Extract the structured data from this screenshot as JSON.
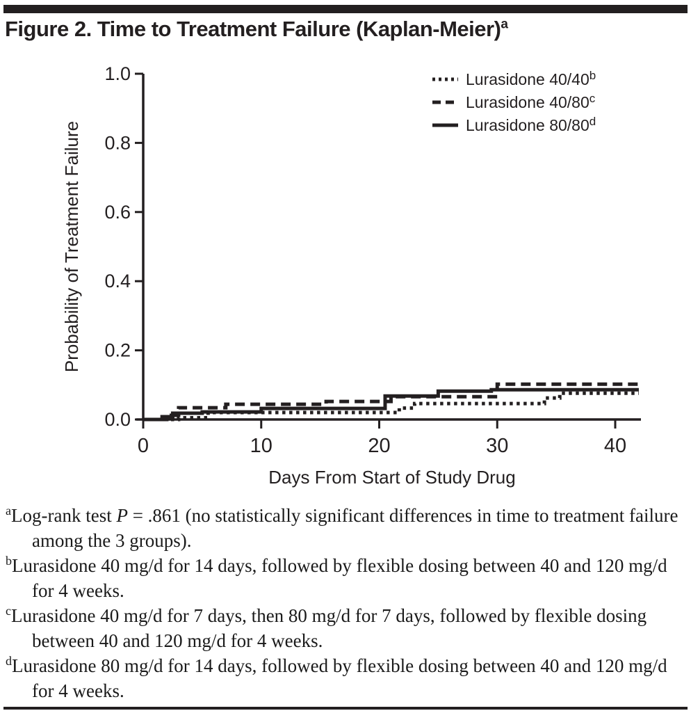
{
  "figure": {
    "title": "Figure 2. Time to Treatment Failure (Kaplan-Meier)",
    "title_sup": "a"
  },
  "colors": {
    "ink": "#231f20",
    "background": "#ffffff"
  },
  "chart_data": {
    "type": "line",
    "variant": "kaplan-meier-step",
    "title": "",
    "xlabel": "Days From Start of Study Drug",
    "ylabel": "Probability of Treatment Failure",
    "xlim": [
      0,
      42.2
    ],
    "ylim": [
      0.0,
      1.0
    ],
    "xticks": [
      0,
      10,
      20,
      30,
      40
    ],
    "ytick_labels": [
      "0.0",
      "0.2",
      "0.4",
      "0.6",
      "0.8",
      "1.0"
    ],
    "ytick_values": [
      0.0,
      0.2,
      0.4,
      0.6,
      0.8,
      1.0
    ],
    "grid": false,
    "legend_position": "top-right",
    "series": [
      {
        "name": "Lurasidone 40/40",
        "sup": "b",
        "style": "dotted",
        "points": [
          [
            0,
            0
          ],
          [
            3,
            0.005
          ],
          [
            5.5,
            0.02
          ],
          [
            21.7,
            0.033
          ],
          [
            23,
            0.046
          ],
          [
            34,
            0.062
          ],
          [
            35.3,
            0.076
          ],
          [
            42,
            0.076
          ]
        ]
      },
      {
        "name": "Lurasidone 40/80",
        "sup": "c",
        "style": "dashed",
        "points": [
          [
            0,
            0
          ],
          [
            2,
            0.012
          ],
          [
            3,
            0.034
          ],
          [
            7,
            0.044
          ],
          [
            15.5,
            0.052
          ],
          [
            21,
            0.066
          ],
          [
            30,
            0.102
          ],
          [
            42,
            0.102
          ]
        ]
      },
      {
        "name": "Lurasidone 80/80",
        "sup": "d",
        "style": "solid",
        "points": [
          [
            0,
            0
          ],
          [
            1.6,
            0.008
          ],
          [
            2.5,
            0.018
          ],
          [
            5,
            0.022
          ],
          [
            10,
            0.032
          ],
          [
            20.5,
            0.068
          ],
          [
            25,
            0.082
          ],
          [
            29.5,
            0.086
          ],
          [
            42,
            0.086
          ]
        ]
      }
    ]
  },
  "footnotes": [
    {
      "sup": "a",
      "pre": "Log-rank test ",
      "italic": "P",
      "post": " = .861 (no statistically significant differences in time to treatment failure among the 3 groups)."
    },
    {
      "sup": "b",
      "pre": "Lurasidone 40 mg/d for 14 days, followed by flexible dosing between 40 and 120 mg/d for 4 weeks.",
      "italic": "",
      "post": ""
    },
    {
      "sup": "c",
      "pre": "Lurasidone 40 mg/d for 7 days, then 80 mg/d for 7 days, followed by flexible dosing between 40 and 120 mg/d for 4 weeks.",
      "italic": "",
      "post": ""
    },
    {
      "sup": "d",
      "pre": "Lurasidone 80 mg/d for 14 days, followed by flexible dosing between 40 and 120 mg/d for 4 weeks.",
      "italic": "",
      "post": ""
    }
  ]
}
